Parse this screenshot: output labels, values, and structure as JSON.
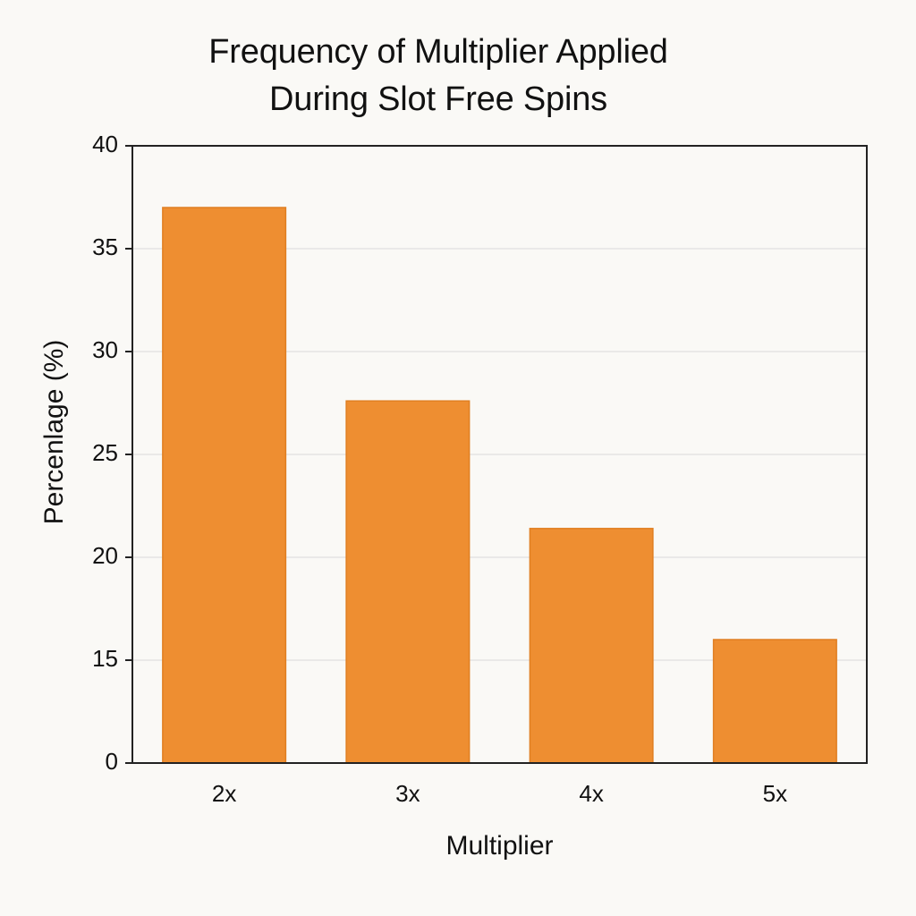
{
  "chart_data": {
    "type": "bar",
    "title_lines": [
      "Frequency of Multiplier Applied",
      "During Slot Free Spins"
    ],
    "xlabel": "Multiplier",
    "ylabel": "Percenlage (%)",
    "categories": [
      "2x",
      "3x",
      "4x",
      "5x"
    ],
    "values": [
      37.0,
      27.6,
      21.4,
      16.0
    ],
    "y_ticks": [
      0,
      15,
      20,
      25,
      30,
      35,
      40
    ],
    "ylim": [
      0,
      40
    ],
    "grid": true,
    "bar_color": "#ee8e31",
    "bar_edge_color": "#e07f22",
    "grid_color": "#e4e4e4",
    "axis_color": "#222222"
  }
}
